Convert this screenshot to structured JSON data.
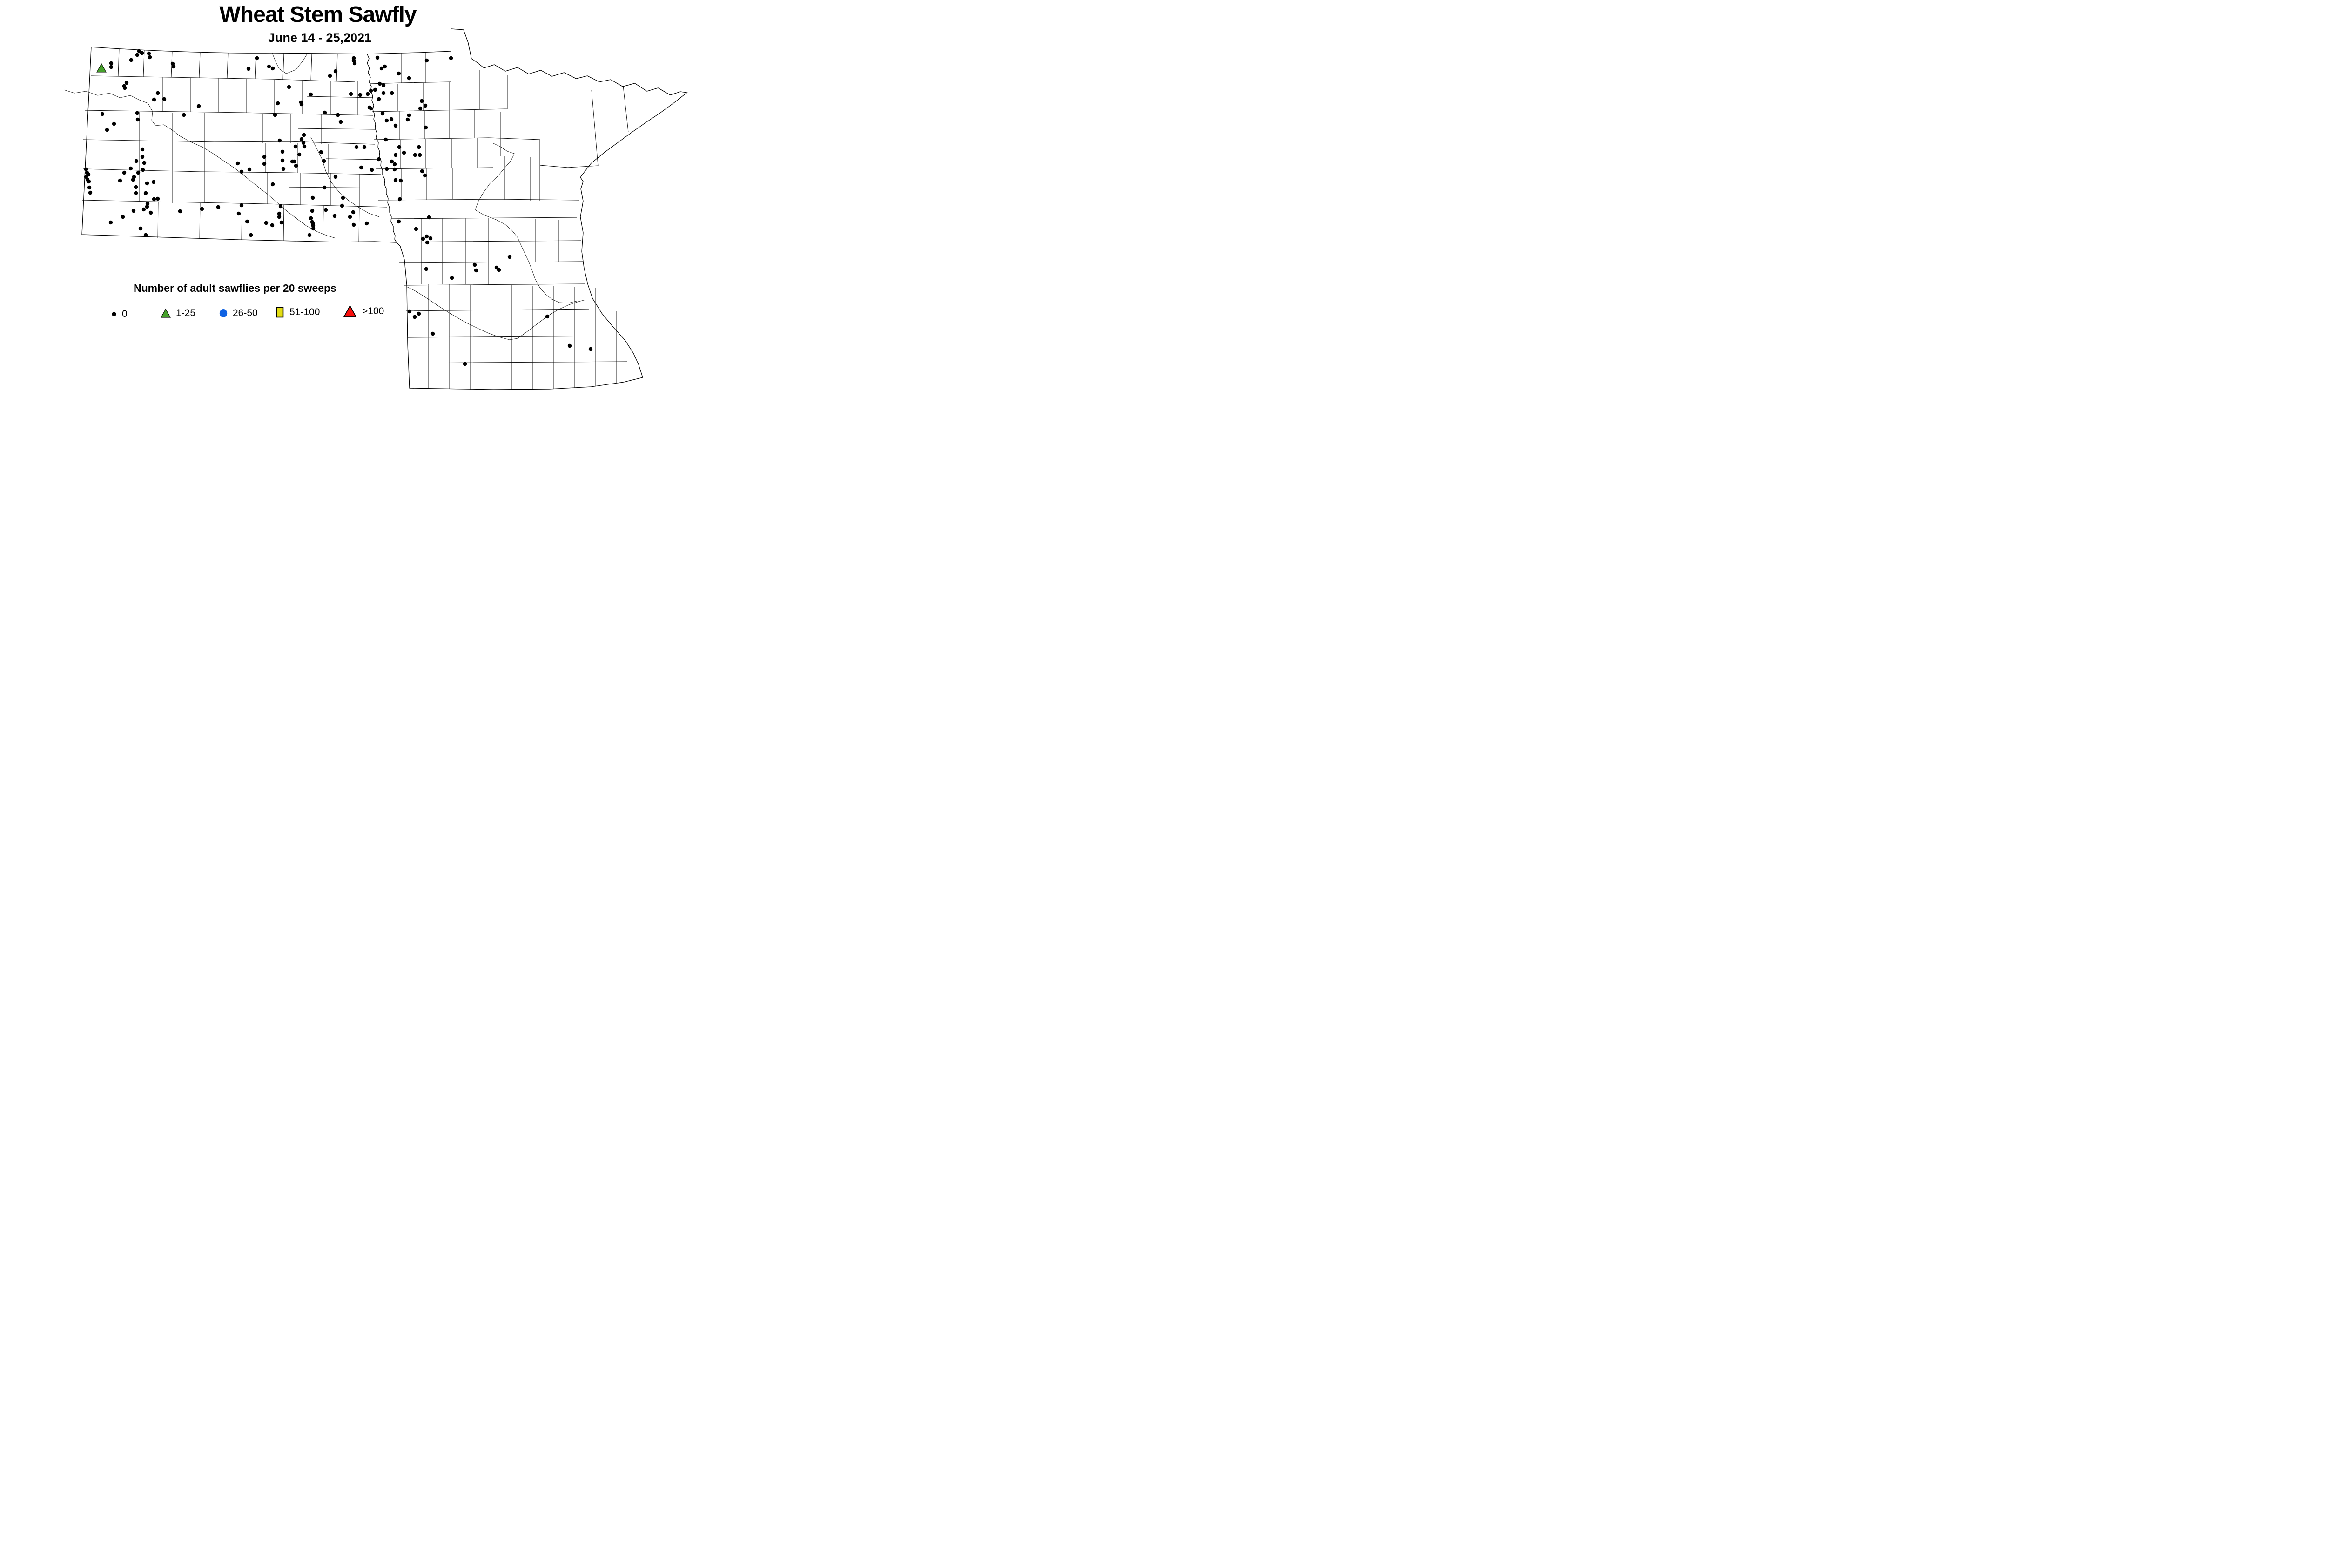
{
  "header": {
    "title": "Wheat Stem Sawfly",
    "subtitle": "June 14 - 25,2021"
  },
  "legend": {
    "title": "Number of adult sawflies per 20 sweeps",
    "items": [
      {
        "label": "0",
        "marker": "black-dot-icon",
        "color": "#000000"
      },
      {
        "label": "1-25",
        "marker": "green-triangle-icon",
        "color": "#46a22b"
      },
      {
        "label": "26-50",
        "marker": "blue-circle-icon",
        "color": "#0f62e3"
      },
      {
        "label": "51-100",
        "marker": "yellow-square-icon",
        "color": "#e4de14"
      },
      {
        "label": ">100",
        "marker": "red-triangle-icon",
        "color": "#fb0f0c"
      }
    ]
  },
  "chart_data": {
    "type": "scatter",
    "title": "Wheat Stem Sawfly",
    "subtitle": "June 14 - 25,2021",
    "legend_title": "Number of adult sawflies per 20 sweeps",
    "classes": [
      "0",
      "1-25",
      "26-50",
      "51-100",
      ">100"
    ],
    "class_colors": [
      "#000000",
      "#46a22b",
      "#0f62e3",
      "#e4de14",
      "#fb0f0c"
    ],
    "coordinate_space": "page pixels 1614x842",
    "points_0": [
      [
        299,
        110
      ],
      [
        305,
        114
      ],
      [
        295,
        118
      ],
      [
        320,
        115
      ],
      [
        322,
        123
      ],
      [
        282,
        129
      ],
      [
        239,
        136
      ],
      [
        239,
        144
      ],
      [
        218,
        148
      ],
      [
        371,
        137
      ],
      [
        373,
        143
      ],
      [
        272,
        178
      ],
      [
        267,
        185
      ],
      [
        268,
        189
      ],
      [
        339,
        200
      ],
      [
        331,
        214
      ],
      [
        353,
        213
      ],
      [
        427,
        228
      ],
      [
        220,
        245
      ],
      [
        295,
        243
      ],
      [
        296,
        257
      ],
      [
        395,
        247
      ],
      [
        245,
        266
      ],
      [
        230,
        279
      ],
      [
        306,
        321
      ],
      [
        306,
        337
      ],
      [
        293,
        346
      ],
      [
        310,
        350
      ],
      [
        281,
        362
      ],
      [
        307,
        365
      ],
      [
        511,
        351
      ],
      [
        185,
        364
      ],
      [
        187,
        371
      ],
      [
        190,
        375
      ],
      [
        185,
        380
      ],
      [
        188,
        386
      ],
      [
        191,
        390
      ],
      [
        192,
        403
      ],
      [
        194,
        414
      ],
      [
        267,
        371
      ],
      [
        297,
        371
      ],
      [
        288,
        380
      ],
      [
        286,
        386
      ],
      [
        258,
        388
      ],
      [
        316,
        394
      ],
      [
        330,
        391
      ],
      [
        292,
        402
      ],
      [
        292,
        415
      ],
      [
        313,
        415
      ],
      [
        331,
        428
      ],
      [
        339,
        427
      ],
      [
        317,
        438
      ],
      [
        316,
        444
      ],
      [
        287,
        453
      ],
      [
        309,
        450
      ],
      [
        324,
        457
      ],
      [
        264,
        466
      ],
      [
        238,
        478
      ],
      [
        302,
        491
      ],
      [
        313,
        505
      ],
      [
        387,
        454
      ],
      [
        434,
        449
      ],
      [
        469,
        445
      ],
      [
        552,
        125
      ],
      [
        534,
        148
      ],
      [
        578,
        143
      ],
      [
        586,
        147
      ],
      [
        721,
        153
      ],
      [
        709,
        163
      ],
      [
        760,
        125
      ],
      [
        760,
        130
      ],
      [
        762,
        136
      ],
      [
        811,
        124
      ],
      [
        820,
        147
      ],
      [
        827,
        143
      ],
      [
        857,
        158
      ],
      [
        621,
        187
      ],
      [
        668,
        203
      ],
      [
        647,
        220
      ],
      [
        648,
        224
      ],
      [
        597,
        222
      ],
      [
        591,
        247
      ],
      [
        754,
        202
      ],
      [
        774,
        204
      ],
      [
        790,
        202
      ],
      [
        797,
        195
      ],
      [
        806,
        193
      ],
      [
        816,
        180
      ],
      [
        824,
        183
      ],
      [
        824,
        200
      ],
      [
        842,
        200
      ],
      [
        814,
        213
      ],
      [
        794,
        231
      ],
      [
        797,
        233
      ],
      [
        698,
        242
      ],
      [
        726,
        247
      ],
      [
        732,
        262
      ],
      [
        822,
        244
      ],
      [
        831,
        259
      ],
      [
        841,
        256
      ],
      [
        850,
        270
      ],
      [
        653,
        290
      ],
      [
        648,
        299
      ],
      [
        652,
        307
      ],
      [
        654,
        315
      ],
      [
        601,
        302
      ],
      [
        635,
        315
      ],
      [
        607,
        326
      ],
      [
        643,
        332
      ],
      [
        568,
        337
      ],
      [
        607,
        345
      ],
      [
        568,
        352
      ],
      [
        628,
        347
      ],
      [
        632,
        347
      ],
      [
        636,
        356
      ],
      [
        609,
        363
      ],
      [
        536,
        364
      ],
      [
        690,
        327
      ],
      [
        696,
        346
      ],
      [
        766,
        316
      ],
      [
        783,
        316
      ],
      [
        814,
        342
      ],
      [
        829,
        300
      ],
      [
        850,
        333
      ],
      [
        842,
        347
      ],
      [
        848,
        353
      ],
      [
        831,
        363
      ],
      [
        776,
        360
      ],
      [
        917,
        130
      ],
      [
        969,
        125
      ],
      [
        879,
        168
      ],
      [
        906,
        217
      ],
      [
        914,
        227
      ],
      [
        903,
        233
      ],
      [
        879,
        248
      ],
      [
        876,
        257
      ],
      [
        915,
        274
      ],
      [
        900,
        316
      ],
      [
        868,
        328
      ],
      [
        892,
        333
      ],
      [
        902,
        333
      ],
      [
        858,
        316
      ],
      [
        907,
        368
      ],
      [
        519,
        369
      ],
      [
        586,
        396
      ],
      [
        721,
        380
      ],
      [
        697,
        403
      ],
      [
        672,
        425
      ],
      [
        737,
        425
      ],
      [
        799,
        365
      ],
      [
        848,
        364
      ],
      [
        850,
        387
      ],
      [
        861,
        388
      ],
      [
        859,
        428
      ],
      [
        519,
        441
      ],
      [
        513,
        459
      ],
      [
        603,
        443
      ],
      [
        600,
        459
      ],
      [
        600,
        466
      ],
      [
        531,
        476
      ],
      [
        671,
        453
      ],
      [
        700,
        451
      ],
      [
        719,
        464
      ],
      [
        668,
        469
      ],
      [
        735,
        442
      ],
      [
        759,
        456
      ],
      [
        752,
        466
      ],
      [
        671,
        477
      ],
      [
        572,
        479
      ],
      [
        585,
        484
      ],
      [
        605,
        478
      ],
      [
        672,
        480
      ],
      [
        673,
        485
      ],
      [
        673,
        491
      ],
      [
        760,
        483
      ],
      [
        788,
        480
      ],
      [
        539,
        505
      ],
      [
        665,
        505
      ],
      [
        857,
        476
      ],
      [
        913,
        377
      ],
      [
        922,
        467
      ],
      [
        894,
        492
      ],
      [
        917,
        508
      ],
      [
        909,
        513
      ],
      [
        925,
        512
      ],
      [
        918,
        521
      ],
      [
        916,
        578
      ],
      [
        1095,
        552
      ],
      [
        1020,
        569
      ],
      [
        1023,
        581
      ],
      [
        1067,
        575
      ],
      [
        1072,
        580
      ],
      [
        971,
        597
      ],
      [
        880,
        669
      ],
      [
        900,
        674
      ],
      [
        891,
        681
      ],
      [
        930,
        717
      ],
      [
        999,
        782
      ],
      [
        1176,
        680
      ],
      [
        1224,
        743
      ],
      [
        1269,
        750
      ]
    ],
    "points_1_25": [
      [
        218,
        147
      ]
    ],
    "points_26_50": [],
    "points_51_100": [],
    "points_over_100": []
  }
}
